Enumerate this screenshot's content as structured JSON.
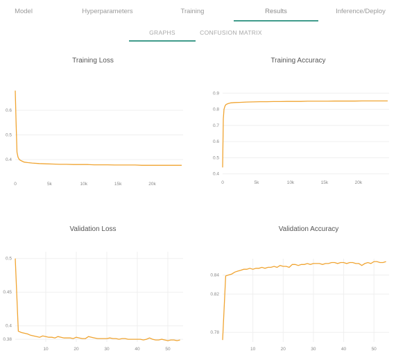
{
  "tabs": [
    {
      "label": "Model",
      "active": false
    },
    {
      "label": "Hyperparameters",
      "active": false
    },
    {
      "label": "Training",
      "active": false
    },
    {
      "label": "Results",
      "active": true
    },
    {
      "label": "Inference/Deploy",
      "active": false
    }
  ],
  "subtabs": [
    {
      "label": "GRAPHS",
      "active": true
    },
    {
      "label": "CONFUSION MATRIX",
      "active": false
    }
  ],
  "colors": {
    "line": "#f0a431",
    "accent": "#3f9b8b"
  },
  "chart_data": [
    {
      "id": "train-loss",
      "type": "line",
      "title": "Training Loss",
      "xlabel": "",
      "ylabel": "",
      "xlim": [
        0,
        24500
      ],
      "ylim": [
        0.33,
        0.69
      ],
      "xticks": [
        0,
        5000,
        10000,
        15000,
        20000
      ],
      "xtick_labels": [
        "0",
        "5k",
        "10k",
        "15k",
        "20k"
      ],
      "yticks": [
        0.4,
        0.5,
        0.6
      ],
      "ytick_labels": [
        "0.4",
        "0.5",
        "0.6"
      ],
      "x": [
        0,
        120,
        250,
        400,
        600,
        900,
        1300,
        1800,
        2500,
        3500,
        4500,
        5500,
        6500,
        7500,
        8500,
        9500,
        10500,
        11500,
        12500,
        13500,
        14500,
        15500,
        16500,
        17500,
        18500,
        19500,
        20500,
        21500,
        22500,
        23500,
        24300
      ],
      "values": [
        0.68,
        0.55,
        0.43,
        0.41,
        0.4,
        0.395,
        0.39,
        0.388,
        0.386,
        0.384,
        0.383,
        0.382,
        0.381,
        0.381,
        0.38,
        0.38,
        0.38,
        0.379,
        0.379,
        0.379,
        0.378,
        0.378,
        0.378,
        0.378,
        0.377,
        0.377,
        0.377,
        0.377,
        0.377,
        0.377,
        0.377
      ]
    },
    {
      "id": "train-acc",
      "type": "line",
      "title": "Training Accuracy",
      "xlabel": "",
      "ylabel": "",
      "xlim": [
        0,
        24500
      ],
      "ylim": [
        0.39,
        0.94
      ],
      "xticks": [
        0,
        5000,
        10000,
        15000,
        20000
      ],
      "xtick_labels": [
        "0",
        "5k",
        "10k",
        "15k",
        "20k"
      ],
      "yticks": [
        0.4,
        0.5,
        0.6,
        0.7,
        0.8,
        0.9
      ],
      "ytick_labels": [
        "0.4",
        "0.5",
        "0.6",
        "0.7",
        "0.8",
        "0.9"
      ],
      "x": [
        0,
        100,
        200,
        350,
        500,
        800,
        1200,
        1800,
        2500,
        3500,
        4500,
        5500,
        6500,
        7500,
        8500,
        9500,
        10500,
        11500,
        12500,
        13500,
        14500,
        15500,
        16500,
        17500,
        18500,
        19500,
        20500,
        21500,
        22500,
        23500,
        24300
      ],
      "values": [
        0.44,
        0.74,
        0.8,
        0.82,
        0.83,
        0.835,
        0.84,
        0.842,
        0.843,
        0.845,
        0.846,
        0.847,
        0.847,
        0.848,
        0.848,
        0.849,
        0.849,
        0.849,
        0.85,
        0.85,
        0.85,
        0.85,
        0.851,
        0.851,
        0.851,
        0.851,
        0.852,
        0.852,
        0.852,
        0.852,
        0.852
      ]
    },
    {
      "id": "val-loss",
      "type": "line",
      "title": "Validation Loss",
      "xlabel": "",
      "ylabel": "",
      "xlim": [
        0,
        55
      ],
      "ylim": [
        0.376,
        0.51
      ],
      "xticks": [
        10,
        20,
        30,
        40,
        50
      ],
      "xtick_labels": [
        "10",
        "20",
        "30",
        "40",
        "50"
      ],
      "yticks": [
        0.38,
        0.4,
        0.45,
        0.5
      ],
      "ytick_labels": [
        "0.38",
        "0.4",
        "0.45",
        "0.5"
      ],
      "x": [
        0,
        1,
        2,
        3,
        4,
        5,
        6,
        7,
        8,
        9,
        10,
        11,
        12,
        13,
        14,
        15,
        16,
        17,
        18,
        19,
        20,
        21,
        22,
        23,
        24,
        25,
        26,
        27,
        28,
        29,
        30,
        31,
        32,
        33,
        34,
        35,
        36,
        37,
        38,
        39,
        40,
        41,
        42,
        43,
        44,
        45,
        46,
        47,
        48,
        49,
        50,
        51,
        52,
        53,
        54
      ],
      "values": [
        0.5,
        0.392,
        0.39,
        0.389,
        0.388,
        0.386,
        0.385,
        0.384,
        0.383,
        0.385,
        0.384,
        0.383,
        0.383,
        0.382,
        0.384,
        0.383,
        0.382,
        0.382,
        0.382,
        0.381,
        0.383,
        0.382,
        0.381,
        0.381,
        0.384,
        0.383,
        0.382,
        0.381,
        0.381,
        0.381,
        0.381,
        0.382,
        0.381,
        0.381,
        0.38,
        0.381,
        0.381,
        0.38,
        0.38,
        0.38,
        0.38,
        0.38,
        0.379,
        0.38,
        0.382,
        0.38,
        0.379,
        0.379,
        0.38,
        0.379,
        0.378,
        0.379,
        0.379,
        0.378,
        0.379
      ]
    },
    {
      "id": "val-acc",
      "type": "line",
      "title": "Validation Accuracy",
      "xlabel": "",
      "ylabel": "",
      "xlim": [
        0,
        55
      ],
      "ylim": [
        0.77,
        0.857
      ],
      "xticks": [
        10,
        20,
        30,
        40,
        50
      ],
      "xtick_labels": [
        "10",
        "20",
        "30",
        "40",
        "50"
      ],
      "yticks": [
        0.78,
        0.82,
        0.84
      ],
      "ytick_labels": [
        "0.78",
        "0.82",
        "0.84"
      ],
      "x": [
        0,
        1,
        2,
        3,
        4,
        5,
        6,
        7,
        8,
        9,
        10,
        11,
        12,
        13,
        14,
        15,
        16,
        17,
        18,
        19,
        20,
        21,
        22,
        23,
        24,
        25,
        26,
        27,
        28,
        29,
        30,
        31,
        32,
        33,
        34,
        35,
        36,
        37,
        38,
        39,
        40,
        41,
        42,
        43,
        44,
        45,
        46,
        47,
        48,
        49,
        50,
        51,
        52,
        53,
        54
      ],
      "values": [
        0.772,
        0.839,
        0.84,
        0.841,
        0.843,
        0.844,
        0.845,
        0.846,
        0.846,
        0.847,
        0.846,
        0.847,
        0.847,
        0.848,
        0.847,
        0.848,
        0.848,
        0.849,
        0.848,
        0.85,
        0.849,
        0.849,
        0.848,
        0.851,
        0.851,
        0.85,
        0.851,
        0.851,
        0.852,
        0.851,
        0.852,
        0.852,
        0.852,
        0.851,
        0.852,
        0.852,
        0.853,
        0.853,
        0.852,
        0.853,
        0.853,
        0.852,
        0.853,
        0.853,
        0.852,
        0.852,
        0.85,
        0.852,
        0.853,
        0.852,
        0.854,
        0.854,
        0.853,
        0.853,
        0.854
      ]
    }
  ]
}
